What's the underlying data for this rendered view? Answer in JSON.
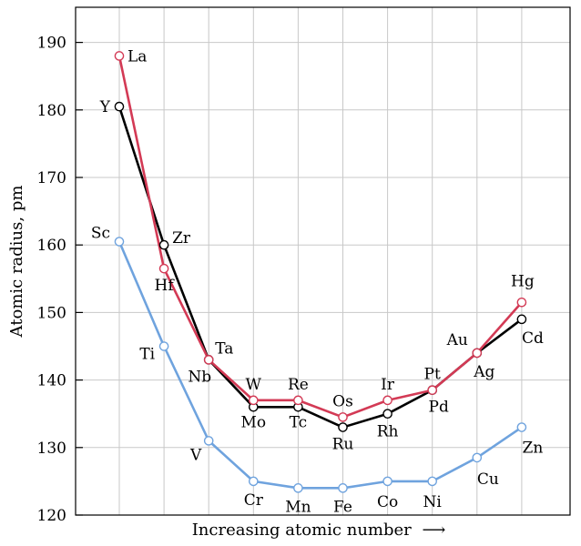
{
  "chart_data": {
    "type": "line",
    "title": "",
    "xlabel": "Increasing atomic number",
    "xlabel_arrow": "⟶",
    "ylabel": "Atomic radius, pm",
    "ylim": [
      120,
      195
    ],
    "yticks": [
      120,
      130,
      140,
      150,
      160,
      170,
      180,
      190
    ],
    "grid": true,
    "legend": "none",
    "x_positions": 10,
    "series": [
      {
        "id": "period4",
        "color": "#6fa3de",
        "points": [
          {
            "x": 1,
            "y": 160.5,
            "label": "Sc"
          },
          {
            "x": 2,
            "y": 145,
            "label": "Ti"
          },
          {
            "x": 3,
            "y": 131,
            "label": "V"
          },
          {
            "x": 4,
            "y": 125,
            "label": "Cr"
          },
          {
            "x": 5,
            "y": 124,
            "label": "Mn"
          },
          {
            "x": 6,
            "y": 124,
            "label": "Fe"
          },
          {
            "x": 7,
            "y": 125,
            "label": "Co"
          },
          {
            "x": 8,
            "y": 125,
            "label": "Ni"
          },
          {
            "x": 9,
            "y": 128.5,
            "label": "Cu"
          },
          {
            "x": 10,
            "y": 133,
            "label": "Zn"
          }
        ]
      },
      {
        "id": "period5",
        "color": "#000000",
        "points": [
          {
            "x": 1,
            "y": 180.5,
            "label": "Y"
          },
          {
            "x": 2,
            "y": 160,
            "label": "Zr"
          },
          {
            "x": 3,
            "y": 143,
            "label": "Nb"
          },
          {
            "x": 4,
            "y": 136,
            "label": "Mo"
          },
          {
            "x": 5,
            "y": 136,
            "label": "Tc"
          },
          {
            "x": 6,
            "y": 133,
            "label": "Ru"
          },
          {
            "x": 7,
            "y": 135,
            "label": "Rh"
          },
          {
            "x": 8,
            "y": 138.5,
            "label": "Pd"
          },
          {
            "x": 9,
            "y": 144,
            "label": "Ag"
          },
          {
            "x": 10,
            "y": 149,
            "label": "Cd"
          }
        ]
      },
      {
        "id": "period6",
        "color": "#d33a55",
        "points": [
          {
            "x": 1,
            "y": 188,
            "label": "La"
          },
          {
            "x": 2,
            "y": 156.5,
            "label": "Hf"
          },
          {
            "x": 3,
            "y": 143,
            "label": "Ta"
          },
          {
            "x": 4,
            "y": 137,
            "label": "W"
          },
          {
            "x": 5,
            "y": 137,
            "label": "Re"
          },
          {
            "x": 6,
            "y": 134.5,
            "label": "Os"
          },
          {
            "x": 7,
            "y": 137,
            "label": "Ir"
          },
          {
            "x": 8,
            "y": 138.5,
            "label": "Pt"
          },
          {
            "x": 9,
            "y": 144,
            "label": "Au"
          },
          {
            "x": 10,
            "y": 151.5,
            "label": "Hg"
          }
        ]
      }
    ]
  }
}
